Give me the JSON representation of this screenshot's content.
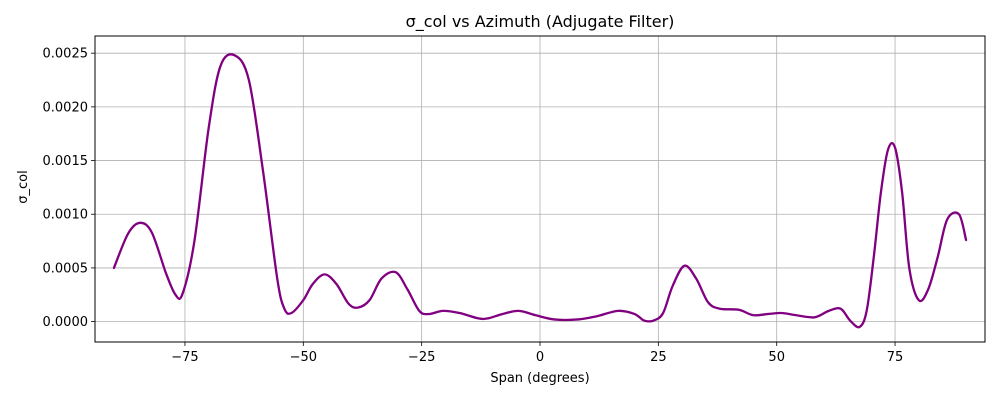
{
  "chart_data": {
    "type": "line",
    "title": "σ_col vs Azimuth (Adjugate Filter)",
    "xlabel": "Span (degrees)",
    "ylabel": "σ_col",
    "xlim": [
      -94,
      94
    ],
    "ylim": [
      -0.00019,
      0.00266
    ],
    "xticks": [
      -75,
      -50,
      -25,
      0,
      25,
      50,
      75
    ],
    "xtick_labels": [
      "−75",
      "−50",
      "−25",
      "0",
      "25",
      "50",
      "75"
    ],
    "yticks": [
      0.0,
      0.0005,
      0.001,
      0.0015,
      0.002,
      0.0025
    ],
    "ytick_labels": [
      "0.0000",
      "0.0005",
      "0.0010",
      "0.0015",
      "0.0020",
      "0.0025"
    ],
    "grid": true,
    "line_color": "#800080",
    "series": [
      {
        "x": [
          -90,
          -87,
          -84.5,
          -82,
          -79,
          -77,
          -75.5,
          -73,
          -70,
          -67.5,
          -64.5,
          -61.5,
          -58.5,
          -55.5,
          -54,
          -52.5,
          -50,
          -48,
          -45.5,
          -43,
          -40.5,
          -38.5,
          -36,
          -33.5,
          -30.5,
          -28,
          -25.5,
          -23.5,
          -20.5,
          -17,
          -13,
          -11,
          -8,
          -4.5,
          -1,
          3,
          8,
          12,
          16.5,
          20,
          22,
          24,
          26,
          28,
          30.5,
          33,
          35.5,
          38,
          42,
          45,
          48,
          51,
          54,
          58,
          61,
          63.5,
          65.5,
          67.5,
          69,
          70.5,
          72,
          73.5,
          75,
          76.5,
          78,
          80,
          82,
          84,
          86,
          88.5,
          90
        ],
        "y": [
          0.0005,
          0.00082,
          0.00092,
          0.00083,
          0.00045,
          0.00025,
          0.00026,
          0.00075,
          0.0018,
          0.00238,
          0.00248,
          0.00225,
          0.0014,
          0.0004,
          0.00012,
          8e-05,
          0.0002,
          0.00035,
          0.00044,
          0.00035,
          0.00017,
          0.00013,
          0.0002,
          0.0004,
          0.00046,
          0.0003,
          0.0001,
          7e-05,
          0.0001,
          8e-05,
          3e-05,
          3e-05,
          7e-05,
          0.0001,
          6e-05,
          2e-05,
          2e-05,
          5e-05,
          0.0001,
          7e-05,
          1e-05,
          1e-05,
          8e-05,
          0.00033,
          0.00052,
          0.0004,
          0.00018,
          0.00012,
          0.00011,
          6e-05,
          7e-05,
          8e-05,
          6e-05,
          4e-05,
          0.0001,
          0.00012,
          1e-05,
          -5e-05,
          0.0001,
          0.0006,
          0.0012,
          0.0016,
          0.00162,
          0.0012,
          0.0005,
          0.0002,
          0.0003,
          0.0006,
          0.00095,
          0.001,
          0.00076
        ]
      }
    ]
  }
}
